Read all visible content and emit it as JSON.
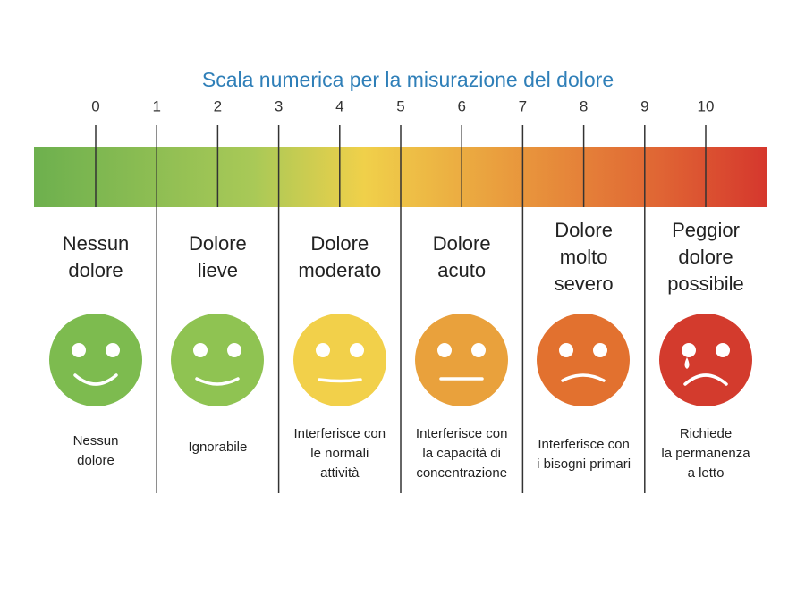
{
  "title": "Scala numerica per la misurazione del dolore",
  "scale": [
    0,
    1,
    2,
    3,
    4,
    5,
    6,
    7,
    8,
    9,
    10
  ],
  "columns": [
    {
      "heading": [
        "Nessun",
        "dolore"
      ],
      "description": [
        "Nessun",
        "dolore"
      ]
    },
    {
      "heading": [
        "Dolore",
        "lieve"
      ],
      "description": [
        "Ignorabile"
      ]
    },
    {
      "heading": [
        "Dolore",
        "moderato"
      ],
      "description": [
        "Interferisce con",
        "le normali",
        "attività"
      ]
    },
    {
      "heading": [
        "Dolore",
        "acuto"
      ],
      "description": [
        "Interferisce con",
        "la capacità di",
        "concentrazione"
      ]
    },
    {
      "heading": [
        "Dolore",
        "molto",
        "severo"
      ],
      "description": [
        "Interferisce con",
        "i bisogni primari"
      ]
    },
    {
      "heading": [
        "Peggior",
        "dolore",
        "possibile"
      ],
      "description": [
        "Richiede",
        "la permanenza",
        "a letto"
      ]
    }
  ]
}
